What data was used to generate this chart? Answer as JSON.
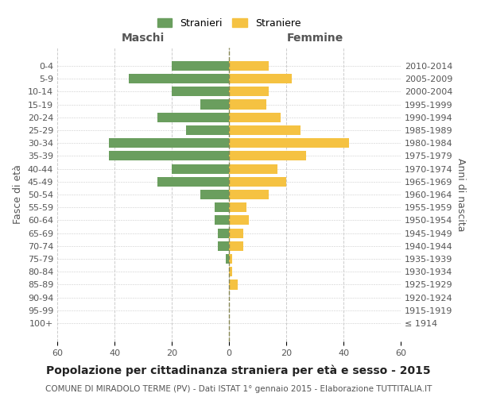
{
  "age_groups": [
    "100+",
    "95-99",
    "90-94",
    "85-89",
    "80-84",
    "75-79",
    "70-74",
    "65-69",
    "60-64",
    "55-59",
    "50-54",
    "45-49",
    "40-44",
    "35-39",
    "30-34",
    "25-29",
    "20-24",
    "15-19",
    "10-14",
    "5-9",
    "0-4"
  ],
  "birth_years": [
    "≤ 1914",
    "1915-1919",
    "1920-1924",
    "1925-1929",
    "1930-1934",
    "1935-1939",
    "1940-1944",
    "1945-1949",
    "1950-1954",
    "1955-1959",
    "1960-1964",
    "1965-1969",
    "1970-1974",
    "1975-1979",
    "1980-1984",
    "1985-1989",
    "1990-1994",
    "1995-1999",
    "2000-2004",
    "2005-2009",
    "2010-2014"
  ],
  "males": [
    0,
    0,
    0,
    0,
    0,
    1,
    4,
    4,
    5,
    5,
    10,
    25,
    20,
    42,
    42,
    15,
    25,
    10,
    20,
    35,
    20
  ],
  "females": [
    0,
    0,
    0,
    3,
    1,
    1,
    5,
    5,
    7,
    6,
    14,
    20,
    17,
    27,
    42,
    25,
    18,
    13,
    14,
    22,
    14
  ],
  "male_color": "#6a9e5e",
  "female_color": "#f5c242",
  "dashed_line_color": "#888855",
  "grid_color": "#cccccc",
  "background_color": "#ffffff",
  "title": "Popolazione per cittadinanza straniera per età e sesso - 2015",
  "subtitle": "COMUNE DI MIRADOLO TERME (PV) - Dati ISTAT 1° gennaio 2015 - Elaborazione TUTTITALIA.IT",
  "ylabel_left": "Fasce di età",
  "ylabel_right": "Anni di nascita",
  "xlabel_left": "Maschi",
  "xlabel_right": "Femmine",
  "legend_male": "Stranieri",
  "legend_female": "Straniere",
  "xlim": 60,
  "tick_fontsize": 8,
  "label_fontsize": 9,
  "title_fontsize": 10,
  "subtitle_fontsize": 7.5
}
